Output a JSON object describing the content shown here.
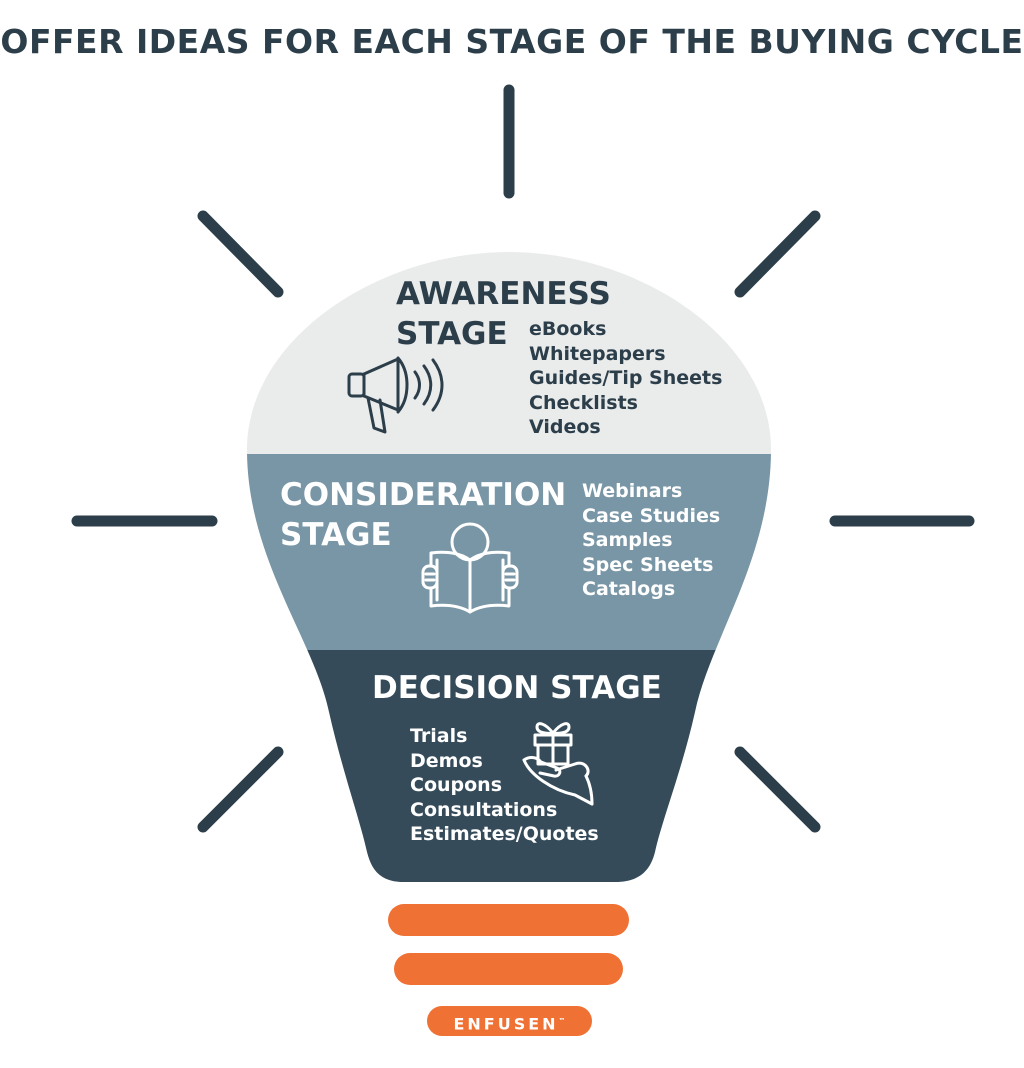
{
  "title": "OFFER IDEAS FOR EACH STAGE OF THE BUYING CYCLE",
  "colors": {
    "dark": "#2c3e4a",
    "light_gray": "#eaebeb",
    "mid_blue": "#7896a6",
    "dark_slate": "#354b5a",
    "orange": "#f07134"
  },
  "stages": {
    "awareness": {
      "title_line1": "AWARENESS",
      "title_line2": "STAGE",
      "icon": "megaphone-icon",
      "items": [
        "eBooks",
        "Whitepapers",
        "Guides/Tip Sheets",
        "Checklists",
        "Videos"
      ]
    },
    "consideration": {
      "title_line1": "CONSIDERATION",
      "title_line2": "STAGE",
      "icon": "reading-book-icon",
      "items": [
        "Webinars",
        "Case Studies",
        "Samples",
        "Spec Sheets",
        "Catalogs"
      ]
    },
    "decision": {
      "title": "DECISION STAGE",
      "icon": "gift-in-hand-icon",
      "items": [
        "Trials",
        "Demos",
        "Coupons",
        "Consultations",
        "Estimates/Quotes"
      ]
    }
  },
  "logo": {
    "text": "ENFUSEN",
    "trademark": "™"
  }
}
